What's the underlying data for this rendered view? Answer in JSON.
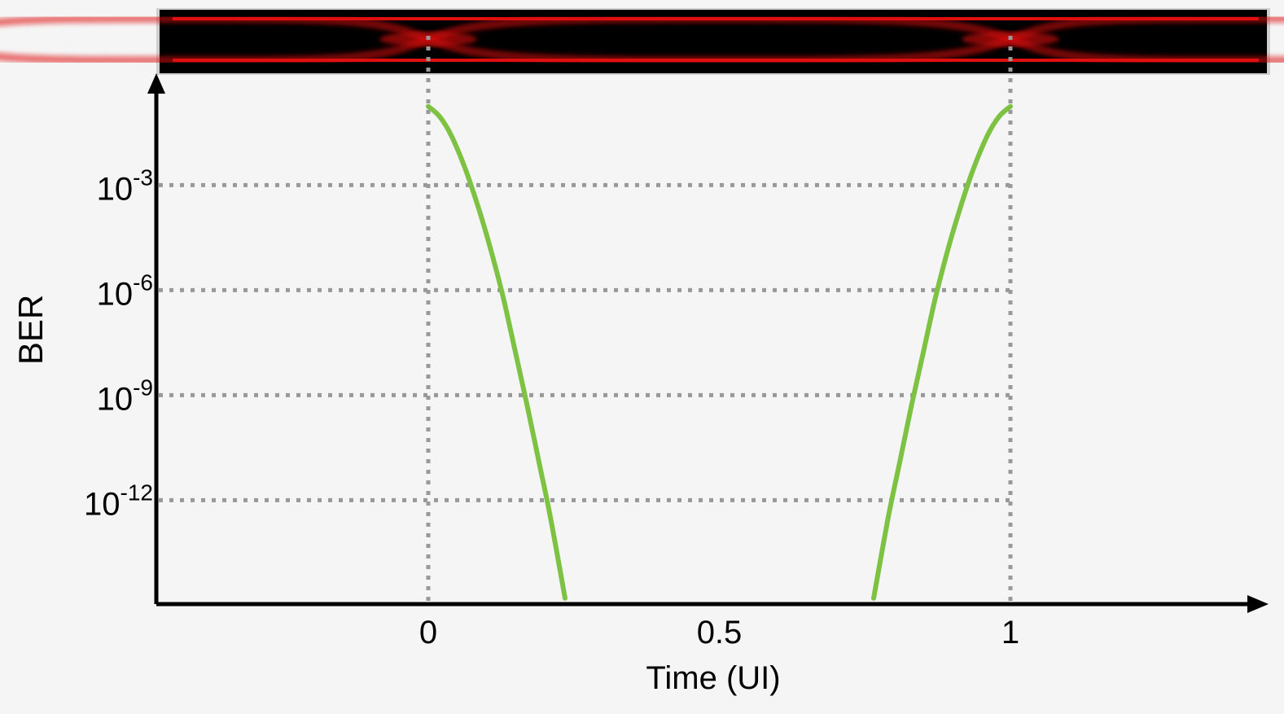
{
  "chart_data": {
    "type": "line",
    "title": "",
    "xlabel": "Time (UI)",
    "ylabel": "BER",
    "x_ticks": [
      {
        "value": 0,
        "label": "0"
      },
      {
        "value": 0.5,
        "label": "0.5"
      },
      {
        "value": 1,
        "label": "1"
      }
    ],
    "y_ticks": [
      {
        "exp": -3,
        "base": "10",
        "sup": "-3"
      },
      {
        "exp": -6,
        "base": "10",
        "sup": "-6"
      },
      {
        "exp": -9,
        "base": "10",
        "sup": "-9"
      },
      {
        "exp": -12,
        "base": "10",
        "sup": "-12"
      }
    ],
    "xlim": [
      -0.465,
      1.425
    ],
    "ylim_log10": [
      -15,
      1
    ],
    "y_scale": "log",
    "grid": "dotted at tick values",
    "series": [
      {
        "name": "",
        "color": "#7dc242",
        "x": [
          0,
          0.02,
          0.04,
          0.065,
          0.09,
          0.11,
          0.13,
          0.15,
          0.17,
          0.19,
          0.21,
          0.235
        ],
        "y_log10": [
          -0.75,
          -1.05,
          -1.6,
          -2.6,
          -3.85,
          -5.0,
          -6.3,
          -7.8,
          -9.3,
          -10.9,
          -12.5,
          -14.8
        ]
      },
      {
        "name": "",
        "color": "#7dc242",
        "x": [
          0.765,
          0.79,
          0.81,
          0.83,
          0.85,
          0.87,
          0.89,
          0.91,
          0.935,
          0.96,
          0.98,
          1
        ],
        "y_log10": [
          -14.8,
          -12.5,
          -10.9,
          -9.3,
          -7.8,
          -6.3,
          -5.0,
          -3.85,
          -2.6,
          -1.6,
          -1.05,
          -0.75
        ]
      }
    ],
    "eye_diagram": {
      "colors": {
        "background": "#000000",
        "trace": "#e01010",
        "frame": "#cfcfcf"
      }
    }
  }
}
